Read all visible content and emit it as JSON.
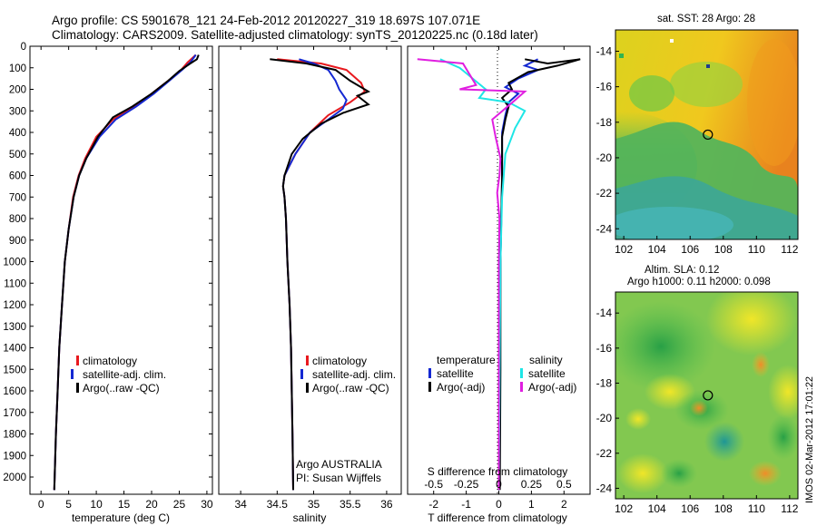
{
  "header": {
    "line1": "Argo profile: CS 5901678_121 24-Feb-2012 20120227_319 18.697S 107.071E",
    "line2": "Climatology: CARS2009. Satellite-adjusted climatology: synTS_20120225.nc (0.18d later)"
  },
  "side_stamp": "IMOS 02-Mar-2012 17:01:22",
  "colors": {
    "red": "#e8191e",
    "blue": "#1428d2",
    "black": "#000000",
    "cyan": "#1ee6e6",
    "magenta": "#e01ee0"
  },
  "chart_data": [
    {
      "type": "line",
      "name": "temperature-panel",
      "xlabel": "temperature (deg C)",
      "ylabel": "",
      "xlim": [
        -2,
        31
      ],
      "ylim": [
        2080,
        0
      ],
      "xticks": [
        "0",
        "5",
        "10",
        "15",
        "20",
        "25",
        "30"
      ],
      "yticks": [
        "0",
        "100",
        "200",
        "300",
        "400",
        "500",
        "600",
        "700",
        "800",
        "900",
        "1000",
        "1100",
        "1200",
        "1300",
        "1400",
        "1500",
        "1600",
        "1700",
        "1800",
        "1900",
        "2000"
      ],
      "legend": [
        "climatology",
        "satellite-adj. clim.",
        "Argo(..raw -QC)"
      ],
      "series": [
        {
          "name": "climatology",
          "color": "red",
          "points": [
            [
              28,
              40
            ],
            [
              26.5,
              75
            ],
            [
              25,
              120
            ],
            [
              23,
              160
            ],
            [
              20,
              220
            ],
            [
              17,
              280
            ],
            [
              13,
              340
            ],
            [
              10,
              420
            ],
            [
              8,
              520
            ],
            [
              6.8,
              600
            ],
            [
              5.8,
              700
            ],
            [
              5,
              850
            ],
            [
              4.3,
              1000
            ],
            [
              3.8,
              1200
            ],
            [
              3.3,
              1400
            ],
            [
              3,
              1600
            ],
            [
              2.7,
              1800
            ],
            [
              2.4,
              2060
            ]
          ]
        },
        {
          "name": "satellite-adj. clim.",
          "color": "blue",
          "points": [
            [
              28,
              40
            ],
            [
              27,
              75
            ],
            [
              25.5,
              110
            ],
            [
              23.2,
              160
            ],
            [
              20.4,
              220
            ],
            [
              17.2,
              280
            ],
            [
              13.5,
              340
            ],
            [
              10.6,
              420
            ],
            [
              8.2,
              520
            ],
            [
              6.9,
              600
            ],
            [
              5.9,
              700
            ],
            [
              5,
              850
            ],
            [
              4.3,
              1000
            ],
            [
              3.8,
              1200
            ],
            [
              3.3,
              1400
            ],
            [
              3,
              1600
            ],
            [
              2.7,
              1800
            ],
            [
              2.4,
              2060
            ]
          ]
        },
        {
          "name": "Argo(..raw -QC)",
          "color": "black",
          "points": [
            [
              28.5,
              40
            ],
            [
              28.2,
              60
            ],
            [
              27,
              80
            ],
            [
              25,
              115
            ],
            [
              23,
              160
            ],
            [
              20,
              220
            ],
            [
              16.5,
              280
            ],
            [
              13,
              330
            ],
            [
              10.3,
              420
            ],
            [
              8.2,
              520
            ],
            [
              6.9,
              600
            ],
            [
              5.9,
              700
            ],
            [
              5,
              850
            ],
            [
              4.3,
              1000
            ],
            [
              3.8,
              1200
            ],
            [
              3.3,
              1400
            ],
            [
              3,
              1600
            ],
            [
              2.7,
              1800
            ],
            [
              2.4,
              2060
            ]
          ]
        }
      ]
    },
    {
      "type": "line",
      "name": "salinity-panel",
      "xlabel": "salinity",
      "xlim": [
        33.7,
        36.2
      ],
      "ylim": [
        2080,
        0
      ],
      "xticks": [
        "34",
        "34.5",
        "35",
        "35.5",
        "36"
      ],
      "legend": [
        "climatology",
        "satellite-adj. clim.",
        "Argo(..raw -QC)"
      ],
      "annotation": [
        "Argo AUSTRALIA",
        "PI: Susan Wijffels"
      ],
      "series": [
        {
          "name": "climatology",
          "color": "red",
          "points": [
            [
              34.5,
              60
            ],
            [
              35.1,
              80
            ],
            [
              35.45,
              110
            ],
            [
              35.65,
              170
            ],
            [
              35.7,
              210
            ],
            [
              35.5,
              260
            ],
            [
              35.2,
              320
            ],
            [
              34.95,
              400
            ],
            [
              34.75,
              500
            ],
            [
              34.6,
              600
            ],
            [
              34.58,
              650
            ],
            [
              34.6,
              700
            ],
            [
              34.62,
              800
            ],
            [
              34.64,
              1000
            ],
            [
              34.67,
              1200
            ],
            [
              34.69,
              1400
            ],
            [
              34.7,
              1600
            ],
            [
              34.71,
              1800
            ],
            [
              34.72,
              2060
            ]
          ]
        },
        {
          "name": "satellite-adj. clim.",
          "color": "blue",
          "points": [
            [
              34.8,
              60
            ],
            [
              35.0,
              80
            ],
            [
              35.2,
              110
            ],
            [
              35.3,
              160
            ],
            [
              35.35,
              200
            ],
            [
              35.45,
              250
            ],
            [
              35.4,
              290
            ],
            [
              35.2,
              340
            ],
            [
              34.95,
              400
            ],
            [
              34.75,
              500
            ],
            [
              34.6,
              600
            ],
            [
              34.58,
              650
            ],
            [
              34.6,
              700
            ],
            [
              34.62,
              800
            ],
            [
              34.64,
              1000
            ],
            [
              34.67,
              1200
            ],
            [
              34.69,
              1400
            ],
            [
              34.7,
              1600
            ],
            [
              34.71,
              1800
            ],
            [
              34.72,
              2060
            ]
          ]
        },
        {
          "name": "Argo(..raw -QC)",
          "color": "black",
          "points": [
            [
              34.4,
              60
            ],
            [
              34.9,
              80
            ],
            [
              35.3,
              110
            ],
            [
              35.5,
              160
            ],
            [
              35.75,
              210
            ],
            [
              35.6,
              230
            ],
            [
              35.75,
              270
            ],
            [
              35.4,
              310
            ],
            [
              35.1,
              360
            ],
            [
              34.85,
              430
            ],
            [
              34.7,
              500
            ],
            [
              34.6,
              600
            ],
            [
              34.58,
              650
            ],
            [
              34.6,
              700
            ],
            [
              34.62,
              800
            ],
            [
              34.64,
              1000
            ],
            [
              34.67,
              1200
            ],
            [
              34.69,
              1400
            ],
            [
              34.7,
              1600
            ],
            [
              34.71,
              1800
            ],
            [
              34.72,
              2060
            ]
          ]
        }
      ]
    },
    {
      "type": "line",
      "name": "difference-panel",
      "xlabel": "T difference from climatology",
      "xlabel_top": "S difference from climatology",
      "xlim": [
        -2.8,
        2.8
      ],
      "ylim": [
        2080,
        0
      ],
      "xticks": [
        "-2",
        "-1",
        "0",
        "1",
        "2"
      ],
      "xticks_top": [
        "-0.5",
        "-0.25",
        "0",
        "0.25",
        "0.5"
      ],
      "legend_left_title": "temperature",
      "legend_right_title": "salinity",
      "legend": [
        "satellite",
        "Argo(-adj)",
        "satellite",
        "Argo(-adj)"
      ],
      "series": [
        {
          "name": "temperature satellite",
          "color": "blue",
          "points": [
            [
              1.2,
              60
            ],
            [
              0.8,
              90
            ],
            [
              1.2,
              110
            ],
            [
              0.6,
              150
            ],
            [
              0.2,
              190
            ],
            [
              0.6,
              220
            ],
            [
              0.3,
              260
            ],
            [
              0.2,
              320
            ],
            [
              0.1,
              400
            ],
            [
              0.1,
              600
            ],
            [
              0.05,
              1000
            ],
            [
              0,
              2060
            ]
          ]
        },
        {
          "name": "temperature Argo(-adj)",
          "color": "black",
          "points": [
            [
              0.8,
              60
            ],
            [
              1.5,
              80
            ],
            [
              2.5,
              60
            ],
            [
              1.8,
              90
            ],
            [
              0.9,
              120
            ],
            [
              0.3,
              170
            ],
            [
              0.4,
              200
            ],
            [
              0.1,
              240
            ],
            [
              0.3,
              280
            ],
            [
              0.2,
              340
            ],
            [
              0.1,
              420
            ],
            [
              0.1,
              600
            ],
            [
              0.05,
              1000
            ],
            [
              0.05,
              1500
            ],
            [
              0.03,
              2060
            ]
          ]
        },
        {
          "name": "salinity satellite",
          "color": "cyan",
          "points": [
            [
              -1.8,
              60
            ],
            [
              -1.2,
              100
            ],
            [
              -0.4,
              200
            ],
            [
              -0.6,
              240
            ],
            [
              0.3,
              260
            ],
            [
              0.8,
              300
            ],
            [
              0.5,
              380
            ],
            [
              0.2,
              500
            ],
            [
              0.1,
              700
            ],
            [
              0.05,
              1000
            ],
            [
              0,
              2060
            ]
          ]
        },
        {
          "name": "salinity Argo(-adj)",
          "color": "magenta",
          "points": [
            [
              -2.5,
              60
            ],
            [
              -1.1,
              80
            ],
            [
              -0.7,
              180
            ],
            [
              -1.2,
              200
            ],
            [
              0.8,
              210
            ],
            [
              0.5,
              250
            ],
            [
              -0.2,
              340
            ],
            [
              -0.1,
              420
            ],
            [
              0.05,
              520
            ],
            [
              0.02,
              600
            ],
            [
              -0.05,
              680
            ],
            [
              0.02,
              800
            ],
            [
              0,
              1000
            ],
            [
              0,
              2060
            ]
          ]
        }
      ]
    },
    {
      "type": "heatmap",
      "name": "sst-map",
      "title": "sat. SST: 28 Argo: 28",
      "xticks": [
        "102",
        "104",
        "106",
        "108",
        "110",
        "112"
      ],
      "yticks": [
        "-14",
        "-16",
        "-18",
        "-20",
        "-22",
        "-24"
      ],
      "xlim": [
        101.5,
        112.5
      ],
      "ylim": [
        -24.6,
        -12.8
      ],
      "marker": [
        107.071,
        -18.697
      ]
    },
    {
      "type": "heatmap",
      "name": "sla-map",
      "title": "Altim. SLA: 0.12",
      "subtitle": "Argo h1000: 0.11 h2000: 0.098",
      "xticks": [
        "102",
        "104",
        "106",
        "108",
        "110",
        "112"
      ],
      "yticks": [
        "-14",
        "-16",
        "-18",
        "-20",
        "-22",
        "-24"
      ],
      "xlim": [
        101.5,
        112.5
      ],
      "ylim": [
        -24.6,
        -12.8
      ],
      "marker": [
        107.071,
        -18.697
      ]
    }
  ]
}
